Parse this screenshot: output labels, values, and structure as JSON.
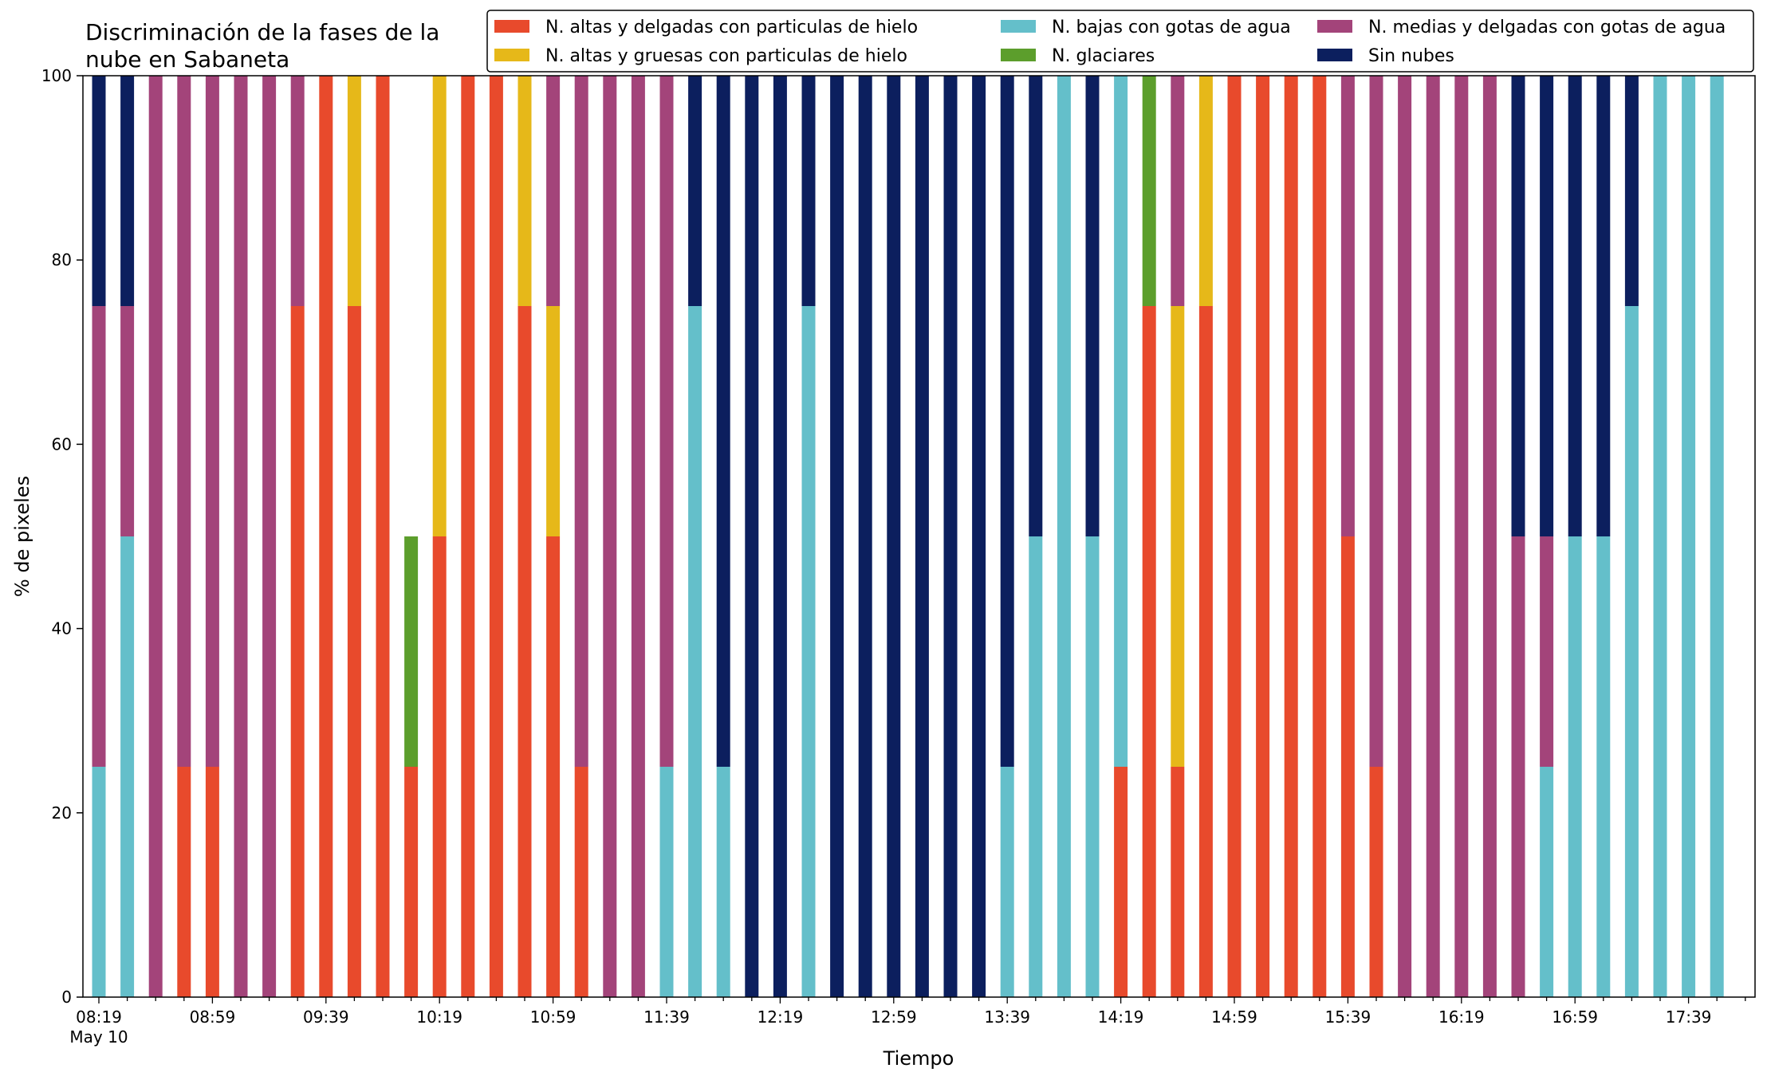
{
  "chart_data": {
    "type": "bar",
    "stacked": true,
    "title": "Discriminación de la fases de la nube en Sabaneta",
    "title_lines": [
      "Discriminación de la fases de la",
      "nube en Sabaneta"
    ],
    "xlabel": "Tiempo",
    "ylabel": "% de pixeles",
    "ylim": [
      0,
      100
    ],
    "yticks": [
      0,
      20,
      40,
      60,
      80,
      100
    ],
    "grid": false,
    "legend_placement": "top-right",
    "x_start": "08:19",
    "x_step_minutes": 10,
    "x_tick_labels": [
      "08:19",
      "08:59",
      "09:39",
      "10:19",
      "10:59",
      "11:39",
      "12:19",
      "12:59",
      "13:39",
      "14:19",
      "14:59",
      "15:39",
      "16:19",
      "16:59",
      "17:39"
    ],
    "x_date_label": "May 10",
    "categories": [
      "08:19",
      "08:29",
      "08:39",
      "08:49",
      "08:59",
      "09:09",
      "09:19",
      "09:29",
      "09:39",
      "09:49",
      "09:59",
      "10:09",
      "10:19",
      "10:29",
      "10:39",
      "10:49",
      "10:59",
      "11:09",
      "11:19",
      "11:29",
      "11:39",
      "11:49",
      "11:59",
      "12:09",
      "12:19",
      "12:29",
      "12:39",
      "12:49",
      "12:59",
      "13:09",
      "13:19",
      "13:29",
      "13:39",
      "13:49",
      "13:59",
      "14:09",
      "14:19",
      "14:29",
      "14:39",
      "14:49",
      "14:59",
      "15:09",
      "15:19",
      "15:29",
      "15:39",
      "15:49",
      "15:59",
      "16:09",
      "16:19",
      "16:29",
      "16:39",
      "16:49",
      "16:59",
      "17:09",
      "17:19",
      "17:29",
      "17:39",
      "17:49"
    ],
    "series": [
      {
        "name": "N. altas y delgadas con particulas de hielo",
        "color": "#e84a2c",
        "values": [
          0,
          0,
          0,
          25,
          25,
          0,
          0,
          75,
          100,
          75,
          100,
          25,
          50,
          100,
          100,
          75,
          50,
          25,
          0,
          0,
          0,
          0,
          0,
          0,
          0,
          0,
          0,
          0,
          0,
          0,
          0,
          0,
          0,
          0,
          0,
          0,
          25,
          75,
          25,
          75,
          100,
          100,
          100,
          100,
          50,
          25,
          0,
          0,
          0,
          0,
          0,
          0,
          0,
          0,
          0,
          0,
          0,
          0
        ]
      },
      {
        "name": "N. altas y gruesas con particulas de hielo",
        "color": "#e6b819",
        "values": [
          0,
          0,
          0,
          0,
          0,
          0,
          0,
          0,
          0,
          25,
          0,
          0,
          50,
          0,
          0,
          25,
          25,
          0,
          0,
          0,
          0,
          0,
          0,
          0,
          0,
          0,
          0,
          0,
          0,
          0,
          0,
          0,
          0,
          0,
          0,
          0,
          0,
          0,
          50,
          25,
          0,
          0,
          0,
          0,
          0,
          0,
          0,
          0,
          0,
          0,
          0,
          0,
          0,
          0,
          0,
          0,
          0,
          0
        ]
      },
      {
        "name": "N. bajas con gotas de agua",
        "color": "#64bfca",
        "values": [
          25,
          50,
          0,
          0,
          0,
          0,
          0,
          0,
          0,
          0,
          0,
          0,
          0,
          0,
          0,
          0,
          0,
          0,
          0,
          0,
          25,
          75,
          25,
          0,
          0,
          75,
          0,
          0,
          0,
          0,
          0,
          0,
          25,
          50,
          100,
          50,
          75,
          0,
          0,
          0,
          0,
          0,
          0,
          0,
          0,
          0,
          0,
          0,
          0,
          0,
          0,
          25,
          50,
          50,
          75,
          100,
          100,
          100
        ]
      },
      {
        "name": "N. glaciares",
        "color": "#5c9e2c",
        "values": [
          0,
          0,
          0,
          0,
          0,
          0,
          0,
          0,
          0,
          0,
          0,
          25,
          0,
          0,
          0,
          0,
          0,
          0,
          0,
          0,
          0,
          0,
          0,
          0,
          0,
          0,
          0,
          0,
          0,
          0,
          0,
          0,
          0,
          0,
          0,
          0,
          0,
          25,
          0,
          0,
          0,
          0,
          0,
          0,
          0,
          0,
          0,
          0,
          0,
          0,
          0,
          0,
          0,
          0,
          0,
          0,
          0,
          0
        ]
      },
      {
        "name": "N. medias y delgadas con gotas de agua",
        "color": "#a3447a",
        "values": [
          50,
          25,
          100,
          75,
          75,
          100,
          100,
          25,
          0,
          0,
          0,
          0,
          0,
          0,
          0,
          0,
          25,
          75,
          100,
          100,
          75,
          0,
          0,
          0,
          0,
          0,
          0,
          0,
          0,
          0,
          0,
          0,
          0,
          0,
          0,
          0,
          0,
          0,
          25,
          0,
          0,
          0,
          0,
          0,
          50,
          75,
          100,
          100,
          100,
          100,
          50,
          25,
          0,
          0,
          0,
          0,
          0,
          0
        ]
      },
      {
        "name": "Sin nubes",
        "color": "#0c1f5e",
        "values": [
          25,
          25,
          0,
          0,
          0,
          0,
          0,
          0,
          0,
          0,
          0,
          0,
          0,
          0,
          0,
          0,
          0,
          0,
          0,
          0,
          0,
          25,
          75,
          100,
          100,
          25,
          100,
          100,
          100,
          100,
          100,
          100,
          75,
          50,
          0,
          50,
          0,
          0,
          0,
          0,
          0,
          0,
          0,
          0,
          0,
          0,
          0,
          0,
          0,
          0,
          50,
          50,
          50,
          50,
          25,
          0,
          0,
          0
        ]
      }
    ]
  }
}
